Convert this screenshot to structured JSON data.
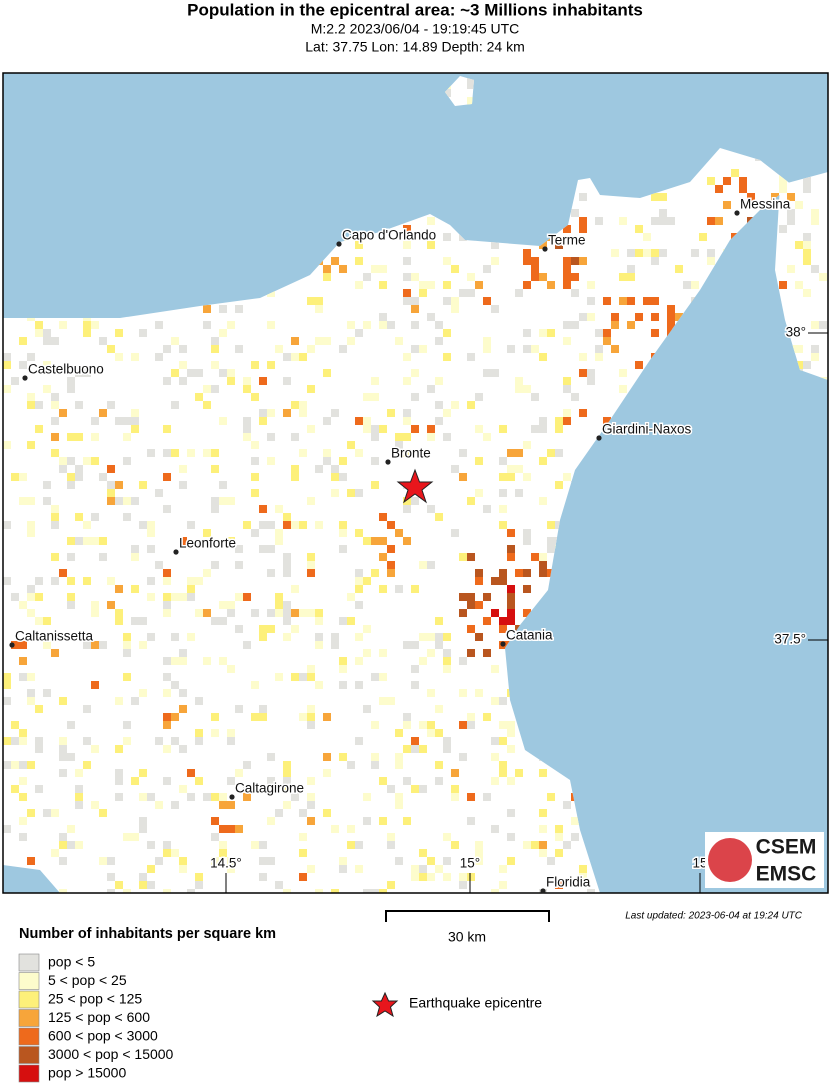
{
  "header": {
    "title": "Population in the epicentral area: ~3 Millions inhabitants",
    "line1": "M:2.2 2023/06/04 - 19:19:45 UTC",
    "line2": "Lat: 37.75 Lon: 14.89 Depth: 24 km"
  },
  "map": {
    "cities": [
      "Capo d'Orlando",
      "Terme",
      "Messina",
      "Castelbuono",
      "Giardini-Naxos",
      "Bronte",
      "Leonforte",
      "Caltanissetta",
      "Catania",
      "Caltagirone",
      "Floridia"
    ],
    "grid_labels": [
      "38°",
      "37.5°",
      "14.5°",
      "15°",
      "15"
    ],
    "logo": [
      "CSEM",
      "EMSC"
    ],
    "scale": "30 km",
    "updated": "Last updated: 2023-06-04 at 19:24 UTC"
  },
  "legend": {
    "title": "Number of inhabitants per square km",
    "items": [
      "pop < 5",
      "5 < pop < 25",
      "25 < pop < 125",
      "125 < pop < 600",
      "600 < pop < 3000",
      "3000 < pop < 15000",
      "pop > 15000"
    ],
    "colors": [
      "#e2e2de",
      "#fdfccc",
      "#fdf07a",
      "#f7a53a",
      "#ee6a1c",
      "#b9561f",
      "#d60f0f"
    ],
    "epicentre": "Earthquake epicentre"
  }
}
